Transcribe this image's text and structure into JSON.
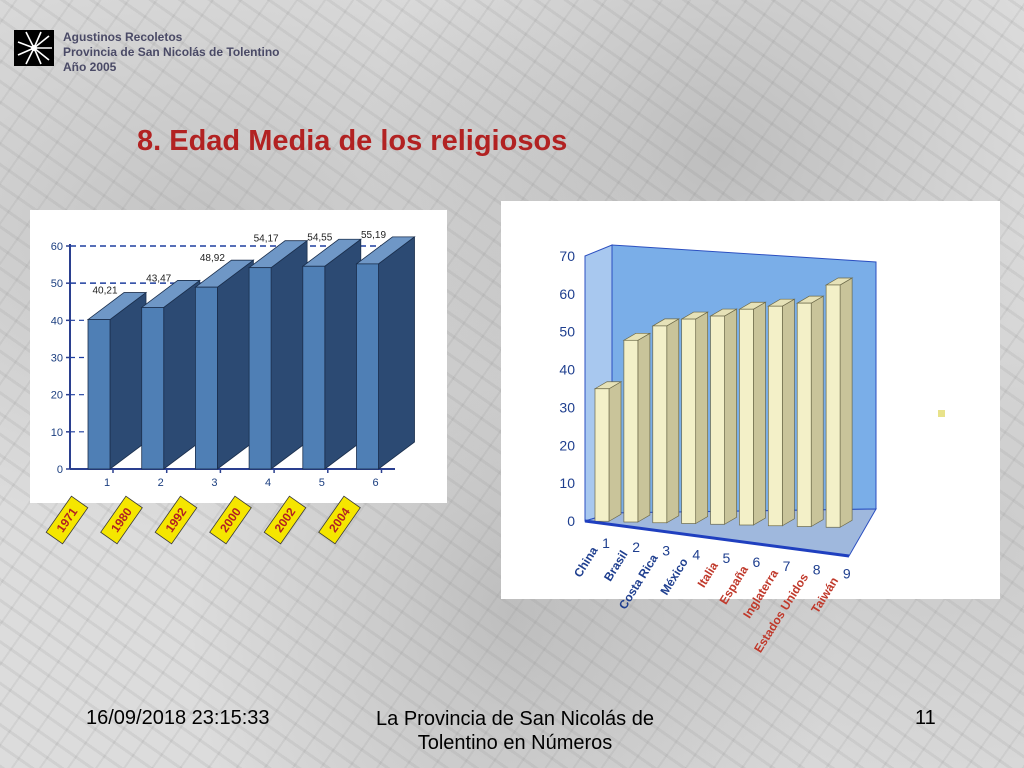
{
  "header": {
    "org_line1": "Agustinos Recoletos",
    "org_line2": "Provincia de San Nicolás de Tolentino",
    "org_line3": "Año 2005",
    "title": "8. Edad Media de los religiosos"
  },
  "footer": {
    "date": "16/09/2018 23:15:33",
    "title": "La Provincia de San Nicolás de Tolentino en Números",
    "page": "11"
  },
  "colors": {
    "title": "#b22222",
    "bar1_front": "#4f7fb5",
    "bar1_side": "#2c4a73",
    "year_tag": "#f5e600",
    "bar2_front": "#f3f0c8",
    "wall_blue": "#7aaee8",
    "label_blue": "#1f3f8f",
    "label_red": "#c0392b"
  },
  "chart_data": [
    {
      "type": "bar",
      "categories": [
        "1",
        "2",
        "3",
        "4",
        "5",
        "6"
      ],
      "values": [
        40.21,
        43.47,
        48.92,
        54.17,
        54.55,
        55.19
      ],
      "value_labels": [
        "40,21",
        "43,47",
        "48,92",
        "54,17",
        "54,55",
        "55,19"
      ],
      "year_tags": [
        "1971",
        "1980",
        "1992",
        "2000",
        "2002",
        "2004"
      ],
      "yticks": [
        "0",
        "10",
        "20",
        "30",
        "40",
        "50",
        "60"
      ],
      "ylim": [
        0,
        60
      ]
    },
    {
      "type": "bar",
      "categories": [
        "1",
        "2",
        "3",
        "4",
        "5",
        "6",
        "7",
        "8",
        "9"
      ],
      "countries": [
        "China",
        "Brasil",
        "Costa Rica",
        "México",
        "Italia",
        "España",
        "Inglaterra",
        "Estados Unidos",
        "Taiwán"
      ],
      "country_colors": [
        "blue",
        "blue",
        "blue",
        "blue",
        "red",
        "red",
        "red",
        "red",
        "red"
      ],
      "values": [
        35,
        48,
        52,
        54,
        55,
        57,
        58,
        59,
        64
      ],
      "yticks": [
        "0",
        "10",
        "20",
        "30",
        "40",
        "50",
        "60",
        "70"
      ],
      "ylim": [
        0,
        70
      ]
    }
  ]
}
